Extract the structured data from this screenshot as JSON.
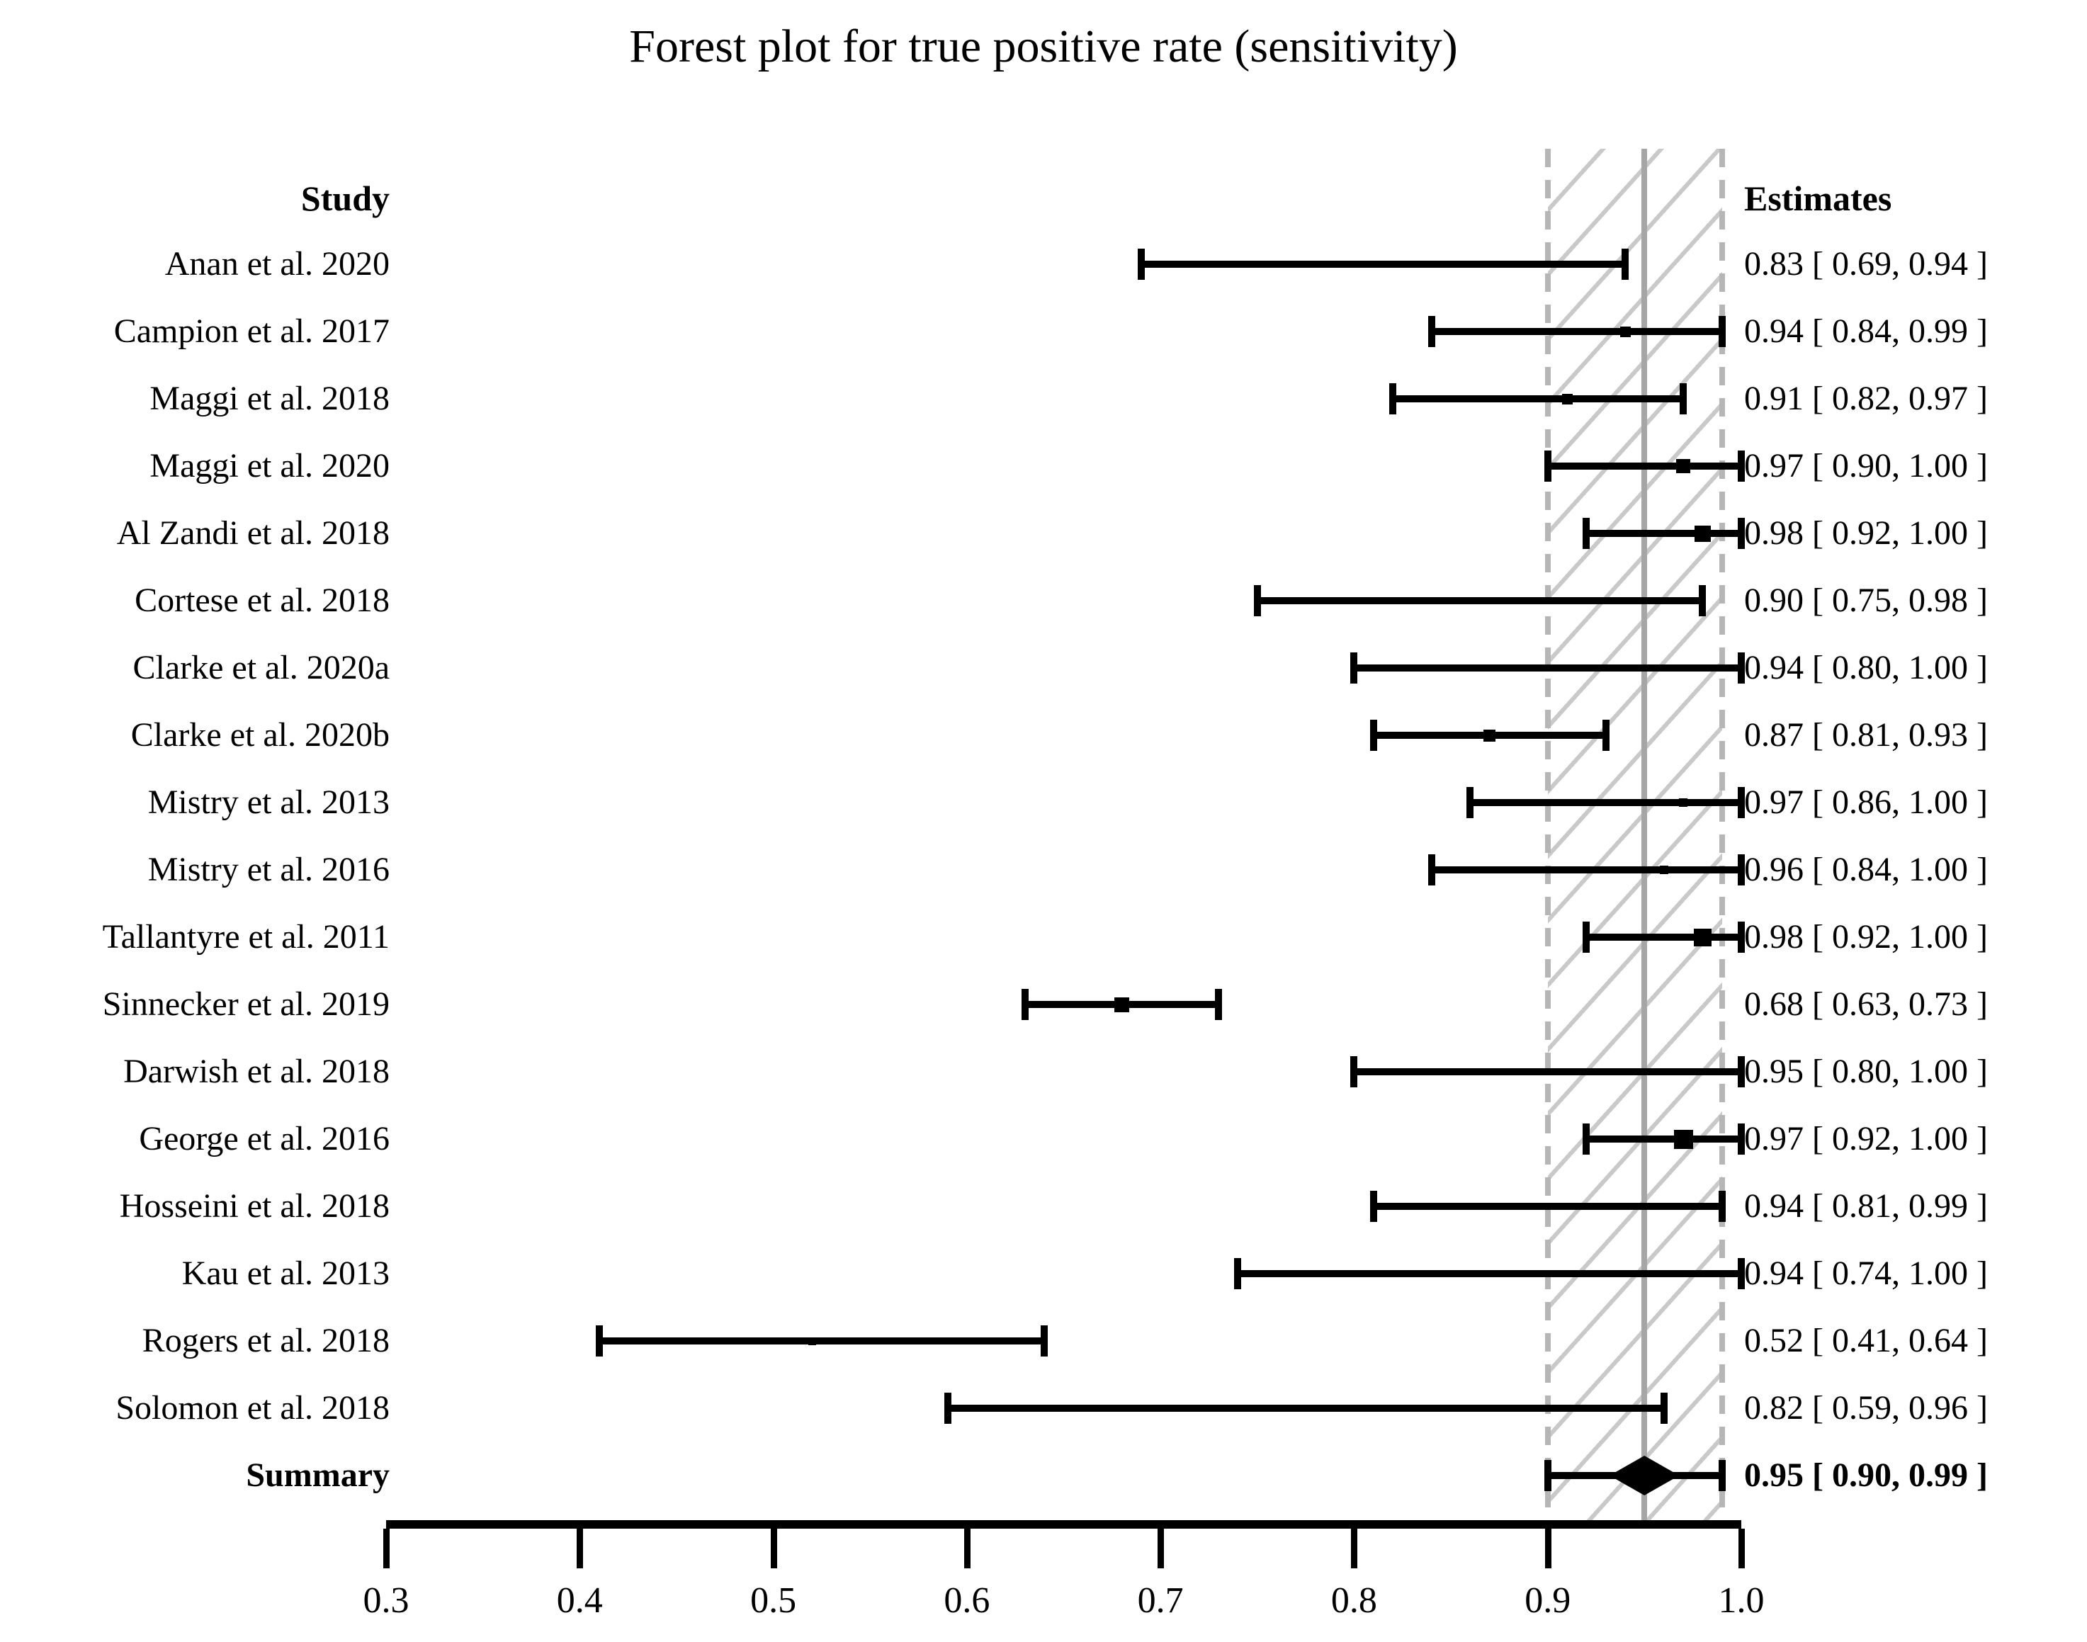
{
  "title": "Forest plot for true positive rate (sensitivity)",
  "columns": {
    "study": "Study",
    "estimates": "Estimates"
  },
  "colors": {
    "bar": "#000000",
    "text": "#000000",
    "background": "#ffffff",
    "hatch_line": "#c9c9c9",
    "band_border_dashed": "#b6b6b6",
    "center_line": "#a6a6a6"
  },
  "chart_data": {
    "type": "scatter",
    "variant": "forest-plot",
    "title": "Forest plot for true positive rate (sensitivity)",
    "x_axis": {
      "min": 0.3,
      "max": 1.0,
      "ticks": [
        "0.3",
        "0.4",
        "0.5",
        "0.6",
        "0.7",
        "0.8",
        "0.9",
        "1.0"
      ]
    },
    "summary_band": {
      "low": 0.9,
      "high": 0.99,
      "center_line": 0.95
    },
    "studies": [
      {
        "study": "Anan et al. 2020",
        "estimate": 0.83,
        "ci_low": 0.69,
        "ci_high": 0.94,
        "label": "0.83 [ 0.69, 0.94 ]",
        "marker_size": 9
      },
      {
        "study": "Campion et al. 2017",
        "estimate": 0.94,
        "ci_low": 0.84,
        "ci_high": 0.99,
        "label": "0.94 [ 0.84, 0.99 ]",
        "marker_size": 15
      },
      {
        "study": "Maggi et al. 2018",
        "estimate": 0.91,
        "ci_low": 0.82,
        "ci_high": 0.97,
        "label": "0.91 [ 0.82, 0.97 ]",
        "marker_size": 15
      },
      {
        "study": "Maggi et al. 2020",
        "estimate": 0.97,
        "ci_low": 0.9,
        "ci_high": 1.0,
        "label": "0.97 [ 0.90, 1.00 ]",
        "marker_size": 20
      },
      {
        "study": "Al Zandi et al. 2018",
        "estimate": 0.98,
        "ci_low": 0.92,
        "ci_high": 1.0,
        "label": "0.98 [ 0.92, 1.00 ]",
        "marker_size": 23
      },
      {
        "study": "Cortese et al. 2018",
        "estimate": 0.9,
        "ci_low": 0.75,
        "ci_high": 0.98,
        "label": "0.90 [ 0.75, 0.98 ]",
        "marker_size": 9
      },
      {
        "study": "Clarke et al. 2020a",
        "estimate": 0.94,
        "ci_low": 0.8,
        "ci_high": 1.0,
        "label": "0.94 [ 0.80, 1.00 ]",
        "marker_size": 10
      },
      {
        "study": "Clarke et al. 2020b",
        "estimate": 0.87,
        "ci_low": 0.81,
        "ci_high": 0.93,
        "label": "0.87 [ 0.81, 0.93 ]",
        "marker_size": 17
      },
      {
        "study": "Mistry et al. 2013",
        "estimate": 0.97,
        "ci_low": 0.86,
        "ci_high": 1.0,
        "label": "0.97 [ 0.86, 1.00 ]",
        "marker_size": 12
      },
      {
        "study": "Mistry et al. 2016",
        "estimate": 0.96,
        "ci_low": 0.84,
        "ci_high": 1.0,
        "label": "0.96 [ 0.84, 1.00 ]",
        "marker_size": 12
      },
      {
        "study": "Tallantyre et al. 2011",
        "estimate": 0.98,
        "ci_low": 0.92,
        "ci_high": 1.0,
        "label": "0.98 [ 0.92, 1.00 ]",
        "marker_size": 25
      },
      {
        "study": "Sinnecker et al. 2019",
        "estimate": 0.68,
        "ci_low": 0.63,
        "ci_high": 0.73,
        "label": "0.68 [ 0.63, 0.73 ]",
        "marker_size": 21
      },
      {
        "study": "Darwish et al. 2018",
        "estimate": 0.95,
        "ci_low": 0.8,
        "ci_high": 1.0,
        "label": "0.95 [ 0.80, 1.00 ]",
        "marker_size": 9
      },
      {
        "study": "George et al. 2016",
        "estimate": 0.97,
        "ci_low": 0.92,
        "ci_high": 1.0,
        "label": "0.97 [ 0.92, 1.00 ]",
        "marker_size": 27
      },
      {
        "study": "Hosseini et al. 2018",
        "estimate": 0.94,
        "ci_low": 0.81,
        "ci_high": 0.99,
        "label": "0.94 [ 0.81, 0.99 ]",
        "marker_size": 9
      },
      {
        "study": "Kau et al. 2013",
        "estimate": 0.94,
        "ci_low": 0.74,
        "ci_high": 1.0,
        "label": "0.94 [ 0.74, 1.00 ]",
        "marker_size": 8
      },
      {
        "study": "Rogers et al. 2018",
        "estimate": 0.52,
        "ci_low": 0.41,
        "ci_high": 0.64,
        "label": "0.52 [ 0.41, 0.64 ]",
        "marker_size": 11
      },
      {
        "study": "Solomon et al. 2018",
        "estimate": 0.82,
        "ci_low": 0.59,
        "ci_high": 0.96,
        "label": "0.82 [ 0.59, 0.96 ]",
        "marker_size": 8
      }
    ],
    "summary": {
      "study": "Summary",
      "estimate": 0.95,
      "ci_low": 0.9,
      "ci_high": 0.99,
      "label": "0.95 [ 0.90, 0.99 ]"
    }
  }
}
